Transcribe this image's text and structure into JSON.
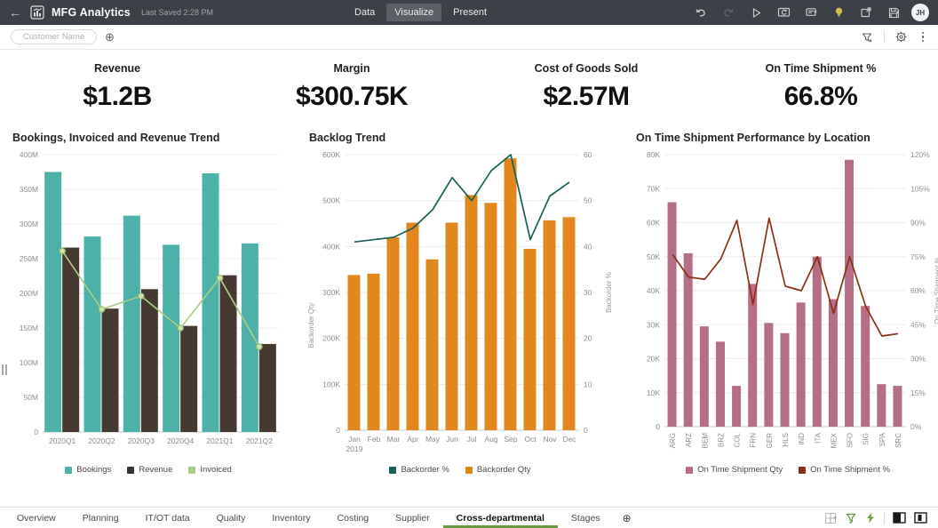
{
  "topbar": {
    "title": "MFG Analytics",
    "saved_status": "Last Saved 2:28 PM",
    "tabs": [
      {
        "label": "Data",
        "active": false
      },
      {
        "label": "Visualize",
        "active": true
      },
      {
        "label": "Present",
        "active": false
      }
    ],
    "avatar_initials": "JH",
    "icons": [
      "back-arrow",
      "workbook-logo",
      "undo",
      "redo",
      "present-play",
      "refresh-data",
      "comment",
      "insights-lightbulb",
      "open-in-new-window",
      "save"
    ]
  },
  "filterbar": {
    "filter_pill_placeholder": "Customer Name",
    "icons": [
      "add-filter-plus",
      "filter-bar-funnel",
      "gear",
      "kebab-menu"
    ]
  },
  "kpis": [
    {
      "label": "Revenue",
      "value": "$1.2B"
    },
    {
      "label": "Margin",
      "value": "$300.75K"
    },
    {
      "label": "Cost of Goods Sold",
      "value": "$2.57M"
    },
    {
      "label": "On Time Shipment %",
      "value": "66.8%"
    }
  ],
  "chart_data": [
    {
      "type": "combo-bar-line",
      "title": "Bookings, Invoiced and Revenue Trend",
      "categories": [
        "2020Q1",
        "2020Q2",
        "2020Q3",
        "2020Q4",
        "2021Q1",
        "2021Q2"
      ],
      "left_axis": {
        "max": 400,
        "labels": [
          "400M",
          "350M",
          "300M",
          "250M",
          "200M",
          "150M",
          "100M",
          "50M",
          "0"
        ],
        "title": ""
      },
      "series": [
        {
          "name": "Bookings",
          "type": "bar",
          "axis": "left",
          "color": "#4EB1A9",
          "values": [
            375,
            282,
            312,
            270,
            373,
            272
          ]
        },
        {
          "name": "Revenue",
          "type": "bar",
          "axis": "left",
          "color": "#453931",
          "values": [
            266,
            178,
            206,
            153,
            226,
            127
          ]
        },
        {
          "name": "Invoiced",
          "type": "line",
          "axis": "left",
          "color": "#A9CD84",
          "markers": true,
          "values": [
            261,
            177,
            196,
            150,
            222,
            123
          ]
        }
      ],
      "legend": [
        {
          "label": "Bookings",
          "color": "#4EB1A9"
        },
        {
          "label": "Revenue",
          "color": "#3B342E"
        },
        {
          "label": "Invoiced",
          "color": "#A9CD84"
        }
      ]
    },
    {
      "type": "combo-bar-line",
      "title": "Backlog Trend",
      "categories": [
        "Jan\n2019",
        "Feb",
        "Mar",
        "Apr",
        "May",
        "Jun",
        "Jul",
        "Aug",
        "Sep",
        "Oct",
        "Nov",
        "Dec"
      ],
      "left_axis": {
        "max": 600,
        "labels": [
          "600K",
          "500K",
          "400K",
          "300K",
          "200K",
          "100K",
          "0"
        ],
        "title": "Backorder Qty"
      },
      "right_axis": {
        "max": 60,
        "labels": [
          "60",
          "50",
          "40",
          "30",
          "20",
          "10",
          "0"
        ],
        "title": "Backorder %"
      },
      "series": [
        {
          "name": "Backorder Qty",
          "type": "bar",
          "axis": "left",
          "color": "#E2871E",
          "values": [
            338,
            341,
            420,
            452,
            372,
            452,
            512,
            495,
            592,
            395,
            457,
            464
          ]
        },
        {
          "name": "Backorder %",
          "type": "line",
          "axis": "right",
          "color": "#186158",
          "markers": false,
          "values": [
            41,
            41.5,
            42,
            44,
            48,
            55,
            50,
            56.5,
            60,
            41.5,
            51,
            54
          ]
        }
      ],
      "legend": [
        {
          "label": "Backorder %",
          "color": "#186158"
        },
        {
          "label": "Backorder Qty",
          "color": "#E2871E"
        }
      ]
    },
    {
      "type": "combo-bar-line",
      "title": "On Time Shipment Performance by Location",
      "categories": [
        "ARG",
        "ARZ",
        "BEM",
        "BRZ",
        "COL",
        "FRN",
        "GER",
        "HLS",
        "IND",
        "ITA",
        "MEX",
        "SFO",
        "SIG",
        "SPA",
        "SRC"
      ],
      "left_axis": {
        "max": 80,
        "labels": [
          "80K",
          "70K",
          "60K",
          "50K",
          "40K",
          "30K",
          "20K",
          "10K",
          "0"
        ],
        "title": ""
      },
      "right_axis": {
        "max": 120,
        "labels": [
          "120%",
          "105%",
          "90%",
          "75%",
          "60%",
          "45%",
          "30%",
          "15%",
          "0%"
        ],
        "title": "On Time Shipment %"
      },
      "series": [
        {
          "name": "On Time Shipment Qty",
          "type": "bar",
          "axis": "left",
          "color": "#B66D86",
          "values": [
            66,
            51,
            29.5,
            25,
            12,
            42,
            30.5,
            27.5,
            36.5,
            50,
            37.5,
            78.5,
            35.5,
            12.5,
            12
          ]
        },
        {
          "name": "On Time Shipment %",
          "type": "line",
          "axis": "right",
          "color": "#8C2F14",
          "markers": false,
          "values": [
            76,
            66,
            65,
            74,
            91,
            54,
            92,
            62,
            60,
            75,
            50,
            75,
            53,
            40,
            41
          ]
        }
      ],
      "legend": [
        {
          "label": "On Time Shipment Qty",
          "color": "#B66D86"
        },
        {
          "label": "On Time Shipment %",
          "color": "#8C2F14"
        }
      ]
    }
  ],
  "bottombar": {
    "tabs": [
      "Overview",
      "Planning",
      "IT/OT data",
      "Quality",
      "Inventory",
      "Costing",
      "Supplier",
      "Cross-departmental",
      "Stages"
    ],
    "active_tab": "Cross-departmental",
    "icons": [
      "canvas-layout-grid",
      "active-filter-funnel",
      "auto-apply-lightning",
      "left-panel-toggle",
      "right-panel-toggle"
    ]
  },
  "colors": {
    "topbar_bg": "#3C4147",
    "active_tab_underline": "#679A41",
    "grid_line": "#ECECEC"
  }
}
